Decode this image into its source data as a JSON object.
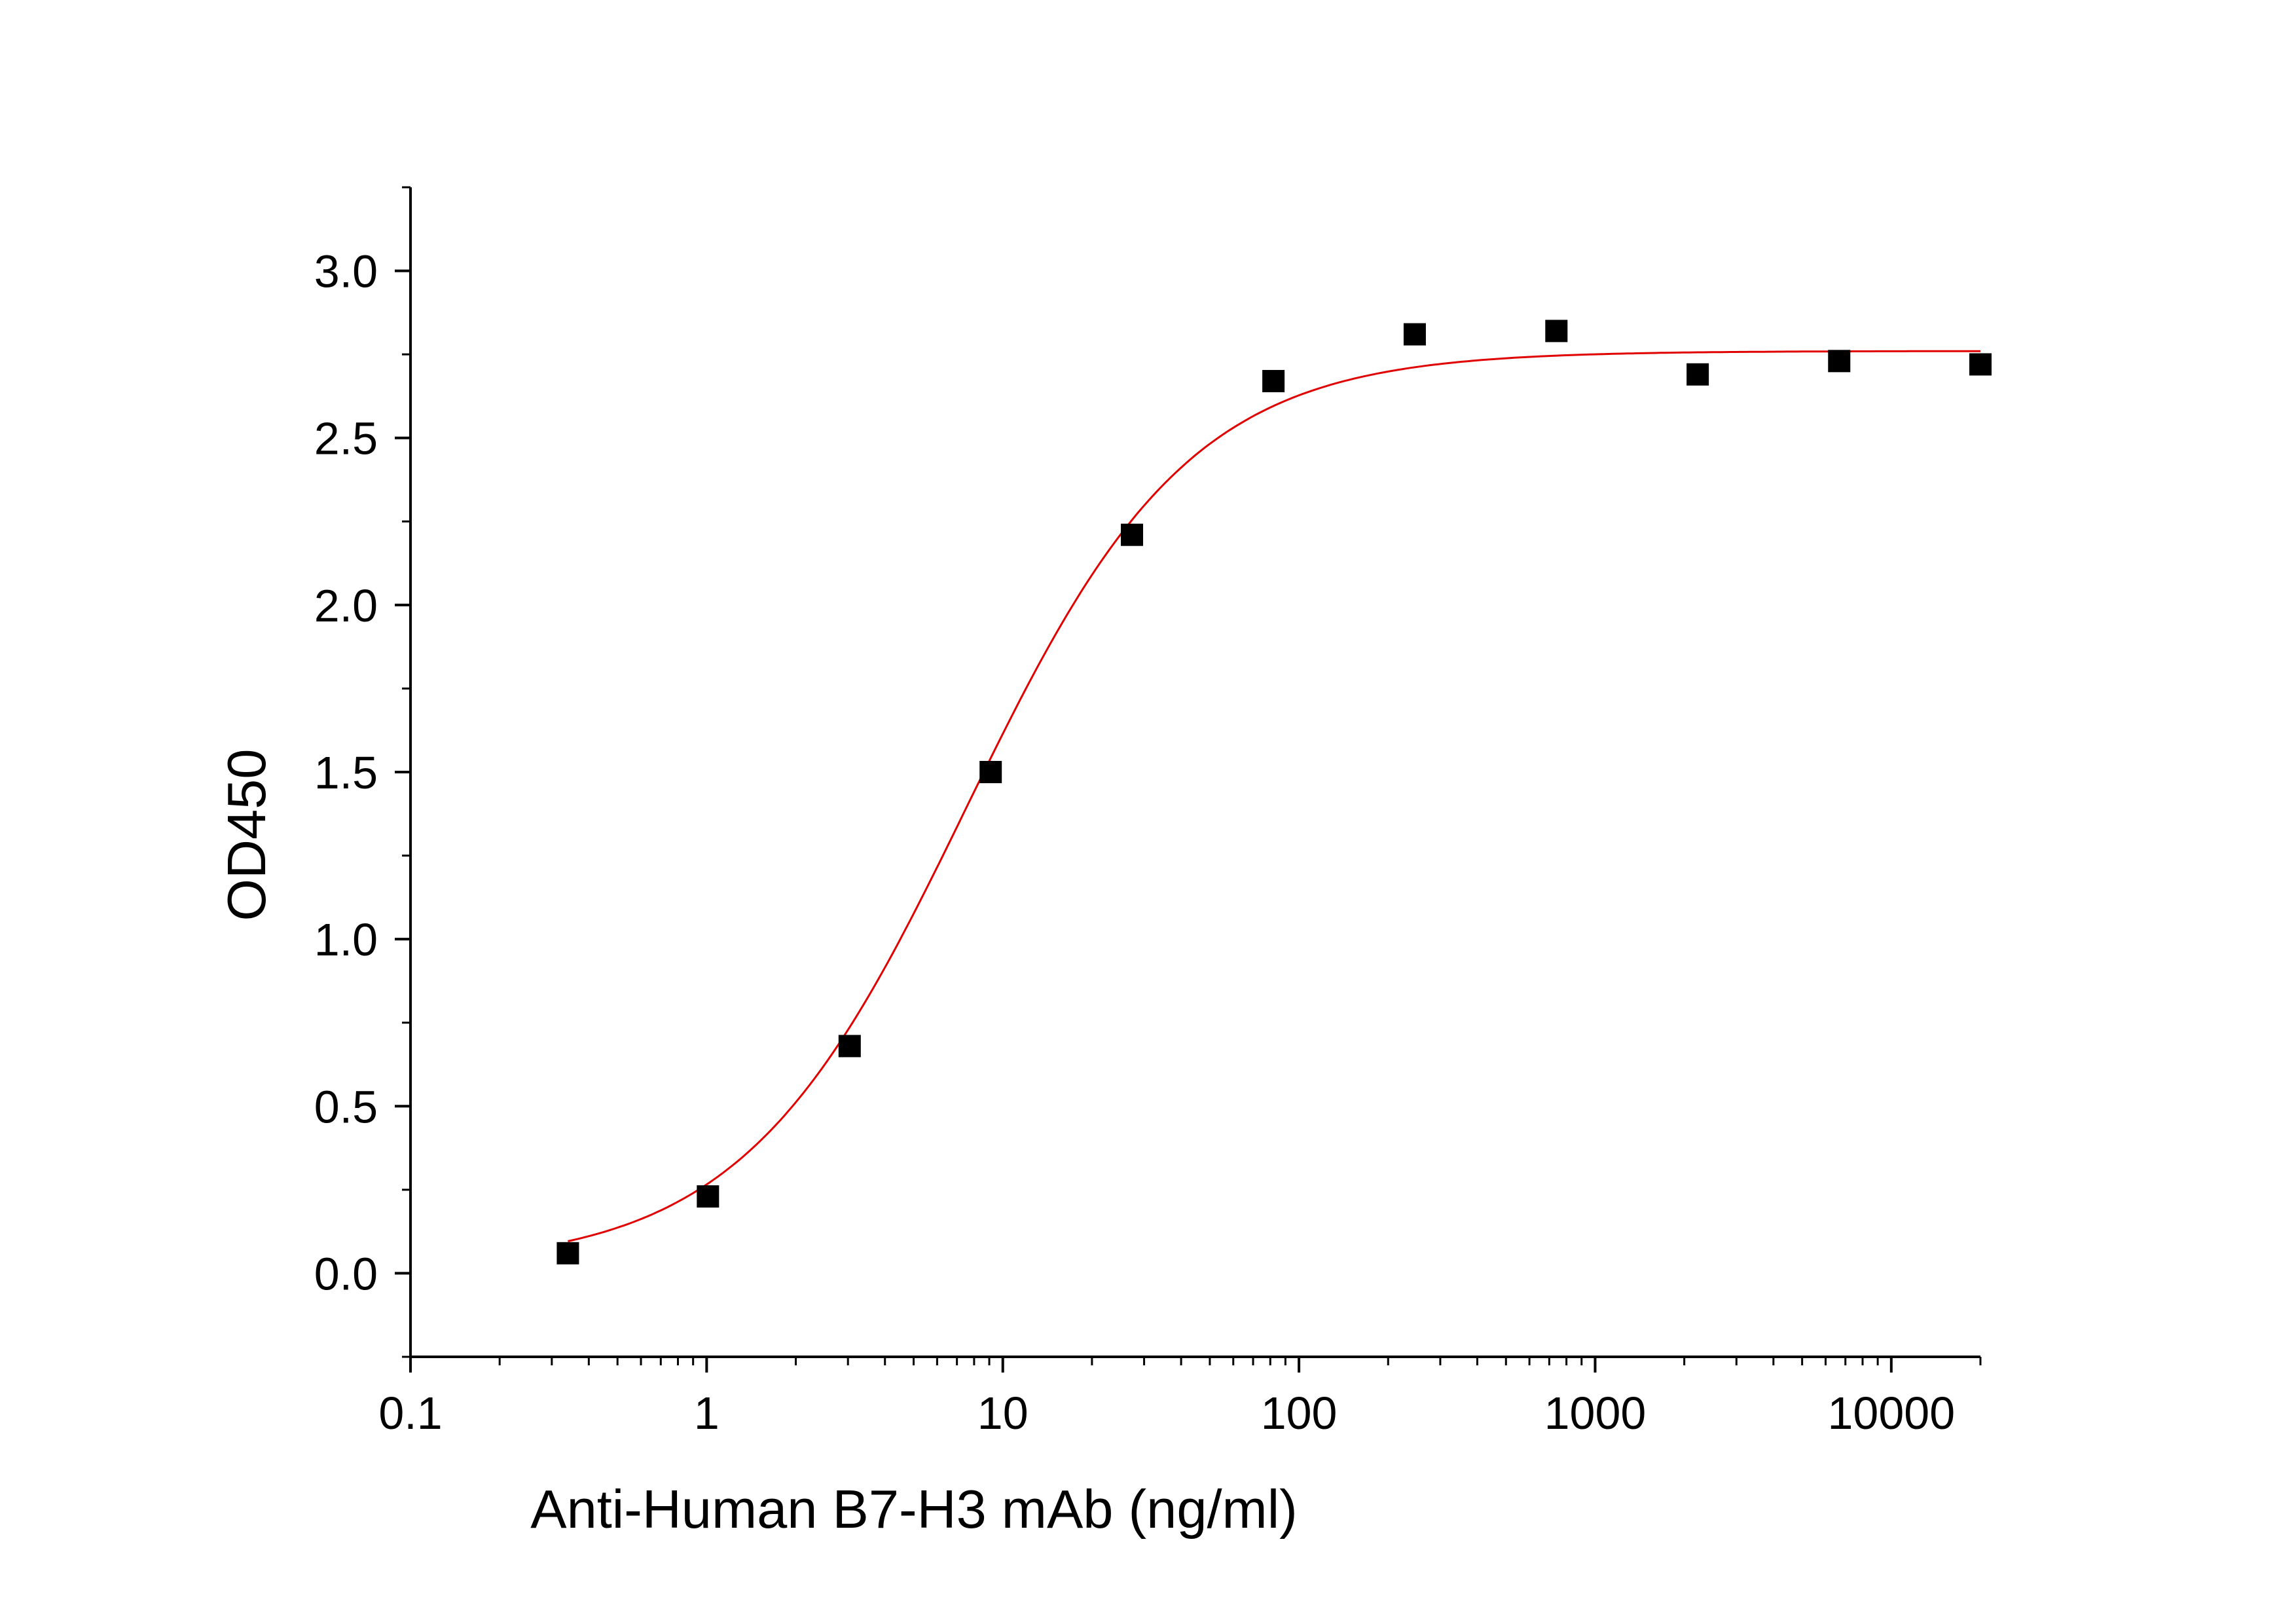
{
  "chart_data": {
    "type": "scatter",
    "xlabel": "Anti-Human B7-H3 mAb (ng/ml)",
    "ylabel": "OD450",
    "x_scale": "log",
    "xlim": [
      0.1,
      20000
    ],
    "ylim": [
      -0.25,
      3.25
    ],
    "x_ticks": [
      {
        "value": 0.1,
        "label": "0.1"
      },
      {
        "value": 1,
        "label": "1"
      },
      {
        "value": 10,
        "label": "10"
      },
      {
        "value": 100,
        "label": "100"
      },
      {
        "value": 1000,
        "label": "1000"
      },
      {
        "value": 10000,
        "label": "10000"
      }
    ],
    "y_ticks": [
      {
        "value": 0.0,
        "label": "0.0"
      },
      {
        "value": 0.5,
        "label": "0.5"
      },
      {
        "value": 1.0,
        "label": "1.0"
      },
      {
        "value": 1.5,
        "label": "1.5"
      },
      {
        "value": 2.0,
        "label": "2.0"
      },
      {
        "value": 2.5,
        "label": "2.5"
      },
      {
        "value": 3.0,
        "label": "3.0"
      }
    ],
    "grid": false,
    "series": [
      {
        "marker": "square",
        "color": "#000000",
        "x": [
          0.34,
          1.01,
          3.04,
          9.1,
          27.3,
          82,
          246,
          740,
          2220,
          6670,
          20000
        ],
        "y": [
          0.06,
          0.23,
          0.68,
          1.5,
          2.21,
          2.67,
          2.81,
          2.82,
          2.69,
          2.73,
          2.72
        ]
      }
    ],
    "fit_curve": {
      "color": "#e00000",
      "model": "4PL",
      "bottom": 0.02,
      "top": 2.76,
      "ec50": 7.5,
      "hill": 1.15,
      "x_range": [
        0.34,
        20000
      ]
    }
  }
}
